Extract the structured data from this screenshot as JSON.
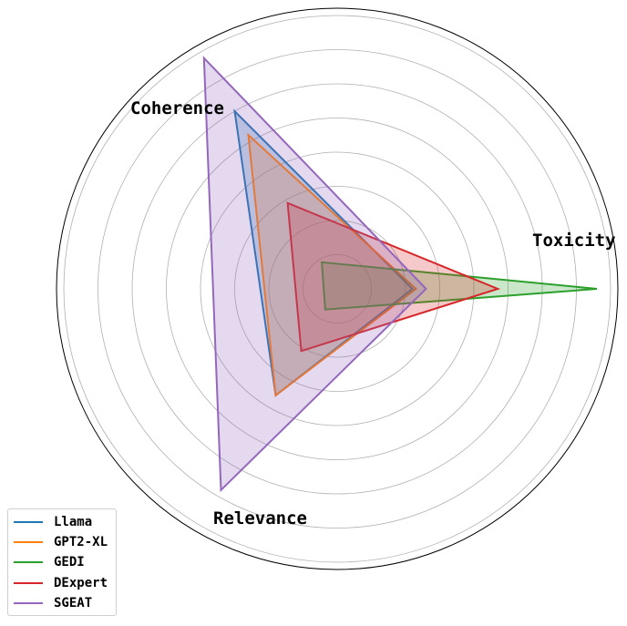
{
  "chart_data": {
    "type": "radar",
    "axes": [
      "Toxicity",
      "Coherence",
      "Relevance"
    ],
    "rlim": [
      0,
      8
    ],
    "grid": true,
    "legend_position": "bottom-left",
    "series": [
      {
        "name": "Llama",
        "color": "#1f77b4",
        "values": [
          2.2,
          6.0,
          3.6
        ]
      },
      {
        "name": "GPT2-XL",
        "color": "#ff7f0e",
        "values": [
          2.3,
          5.2,
          3.6
        ]
      },
      {
        "name": "GEDI",
        "color": "#2ca02c",
        "values": [
          7.6,
          0.9,
          0.7
        ]
      },
      {
        "name": "DExpert",
        "color": "#d62728",
        "values": [
          4.7,
          2.9,
          2.1
        ]
      },
      {
        "name": "SGEAT",
        "color": "#9467bd",
        "values": [
          2.6,
          7.8,
          6.8
        ]
      }
    ]
  }
}
